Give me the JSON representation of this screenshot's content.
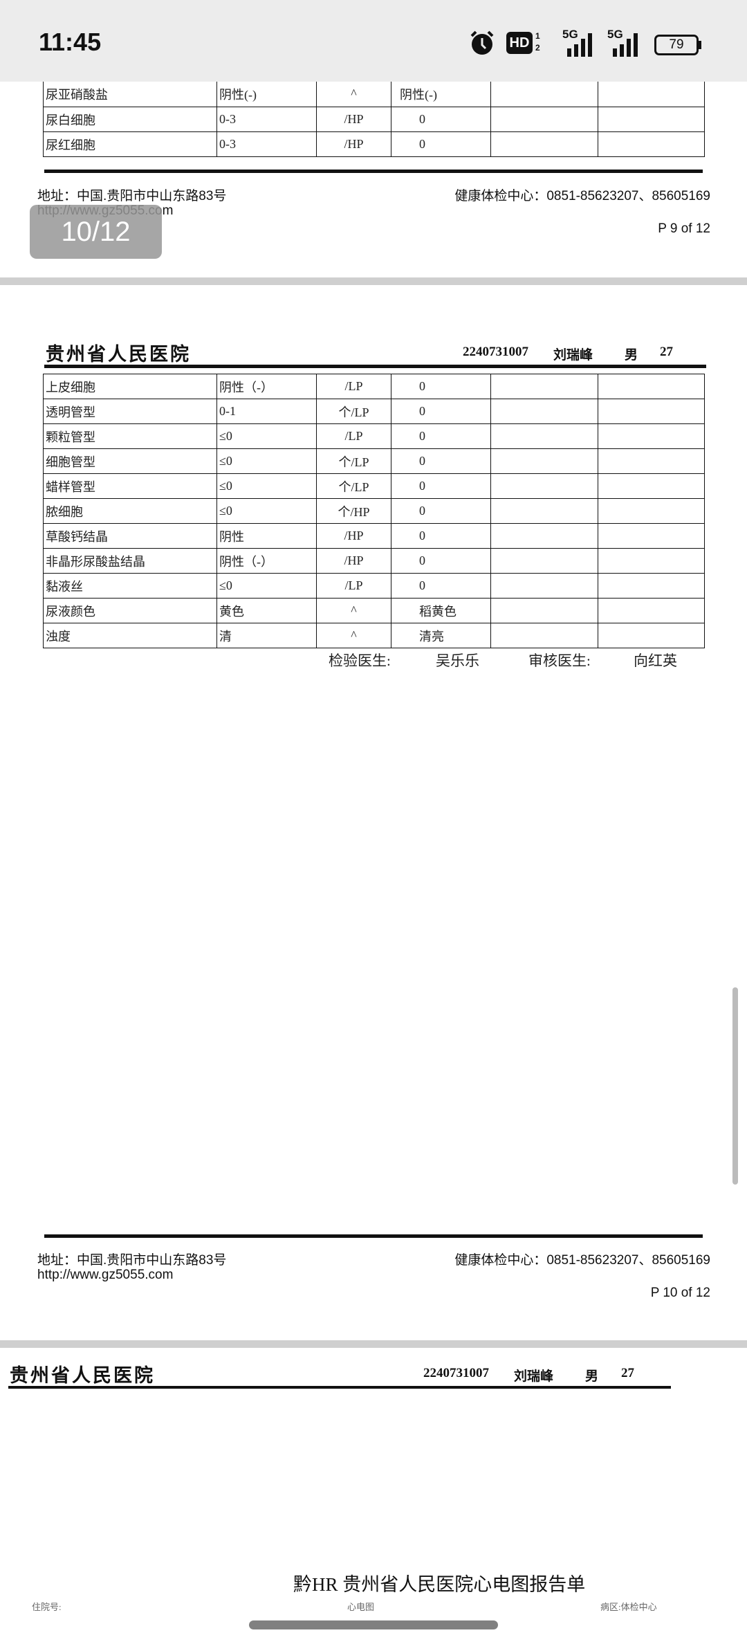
{
  "status_bar": {
    "time": "11:45",
    "battery": "79",
    "network1": "5G",
    "network2": "5G",
    "hd_label": "HD",
    "sim_1": "1",
    "sim_2": "2"
  },
  "page_indicator": "10/12",
  "hospital": {
    "name": "贵州省人民医院",
    "patient_id": "2240731007",
    "patient_name": "刘瑞峰",
    "sex": "男",
    "age": "27"
  },
  "footer": {
    "address": "地址：中国.贵阳市中山东路83号",
    "url": "http://www.gz5055.com",
    "phone": "健康体检中心：0851-85623207、85605169"
  },
  "page9": {
    "page_label": "P 9 of 12",
    "rows": [
      {
        "item": "尿亚硝酸盐",
        "ref": "阴性(-)",
        "unit": "^",
        "result": "阴性(-)"
      },
      {
        "item": "尿白细胞",
        "ref": "0-3",
        "unit": "/HP",
        "result": "0"
      },
      {
        "item": "尿红细胞",
        "ref": "0-3",
        "unit": "/HP",
        "result": "0"
      }
    ]
  },
  "page10": {
    "page_label": "P 10 of 12",
    "rows": [
      {
        "item": "上皮细胞",
        "ref": "阴性（-）",
        "unit": "/LP",
        "result": "0"
      },
      {
        "item": "透明管型",
        "ref": "0-1",
        "unit": "个/LP",
        "result": "0"
      },
      {
        "item": "颗粒管型",
        "ref": "≤0",
        "unit": "/LP",
        "result": "0"
      },
      {
        "item": "细胞管型",
        "ref": "≤0",
        "unit": "个/LP",
        "result": "0"
      },
      {
        "item": "蜡样管型",
        "ref": "≤0",
        "unit": "个/LP",
        "result": "0"
      },
      {
        "item": "脓细胞",
        "ref": "≤0",
        "unit": "个/HP",
        "result": "0"
      },
      {
        "item": "草酸钙结晶",
        "ref": "阴性",
        "unit": "/HP",
        "result": "0"
      },
      {
        "item": "非晶形尿酸盐结晶",
        "ref": "阴性（-）",
        "unit": "/HP",
        "result": "0"
      },
      {
        "item": "黏液丝",
        "ref": "≤0",
        "unit": "/LP",
        "result": "0"
      },
      {
        "item": "尿液颜色",
        "ref": "黄色",
        "unit": "^",
        "result": "稻黄色"
      },
      {
        "item": "浊度",
        "ref": "清",
        "unit": "^",
        "result": "清亮"
      }
    ],
    "signatures": {
      "tester_label": "检验医生:",
      "tester": "吴乐乐",
      "reviewer_label": "审核医生:",
      "reviewer": "向红英"
    }
  },
  "page11": {
    "ecg_title": "黔HR 贵州省人民医院心电图报告单",
    "field_left": "住院号:",
    "field_center": "心电图",
    "field_right": "病区:体检中心"
  }
}
